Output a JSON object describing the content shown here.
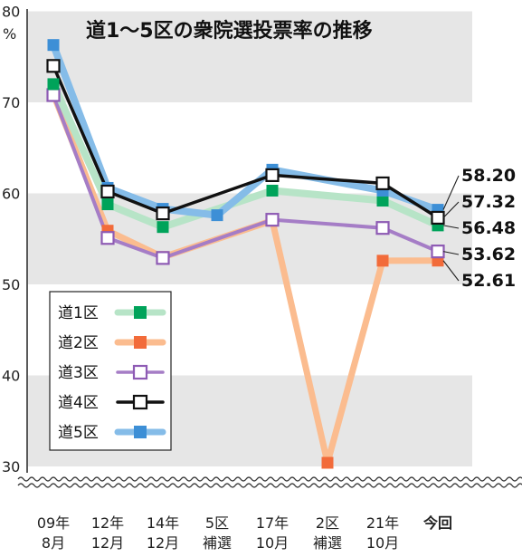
{
  "chart_data": {
    "type": "line",
    "title": "道1～5区の衆院選投票率の推移",
    "ylabel": "%",
    "ylim": [
      30,
      80
    ],
    "yticks": [
      30,
      40,
      50,
      60,
      70,
      80
    ],
    "y_axis_break": true,
    "grid": "horizontal bands",
    "legend_position": "left-middle",
    "categories": [
      [
        "09年",
        "8月"
      ],
      [
        "12年",
        "12月"
      ],
      [
        "14年",
        "12月"
      ],
      [
        "5区",
        "補選"
      ],
      [
        "17年",
        "10月"
      ],
      [
        "2区",
        "補選"
      ],
      [
        "21年",
        "10月"
      ],
      [
        "今回",
        ""
      ]
    ],
    "series": [
      {
        "name": "道1区",
        "color": "#00a35a",
        "line_color": "#b7e4c7",
        "marker": "square-filled",
        "values": [
          72.0,
          58.8,
          56.3,
          null,
          60.3,
          null,
          59.2,
          56.48
        ]
      },
      {
        "name": "道2区",
        "color": "#f26b3a",
        "line_color": "#fbbc8f",
        "marker": "square-filled",
        "values": [
          70.9,
          55.9,
          53.0,
          null,
          57.0,
          30.4,
          52.6,
          52.61
        ]
      },
      {
        "name": "道3区",
        "color": "#8e5bb4",
        "line_color": "#a57dc6",
        "marker": "square-hollow",
        "values": [
          70.8,
          55.1,
          52.9,
          null,
          57.1,
          null,
          56.2,
          53.62
        ]
      },
      {
        "name": "道4区",
        "color": "#111111",
        "line_color": "#111111",
        "marker": "square-hollow",
        "values": [
          74.0,
          60.2,
          57.8,
          null,
          62.0,
          null,
          61.1,
          57.32
        ]
      },
      {
        "name": "道5区",
        "color": "#3d8fd6",
        "line_color": "#85bce8",
        "marker": "square-filled",
        "values": [
          76.3,
          60.6,
          58.3,
          57.6,
          62.6,
          null,
          60.3,
          58.2
        ]
      }
    ],
    "end_labels": [
      "58.20",
      "57.32",
      "56.48",
      "53.62",
      "52.61"
    ]
  }
}
